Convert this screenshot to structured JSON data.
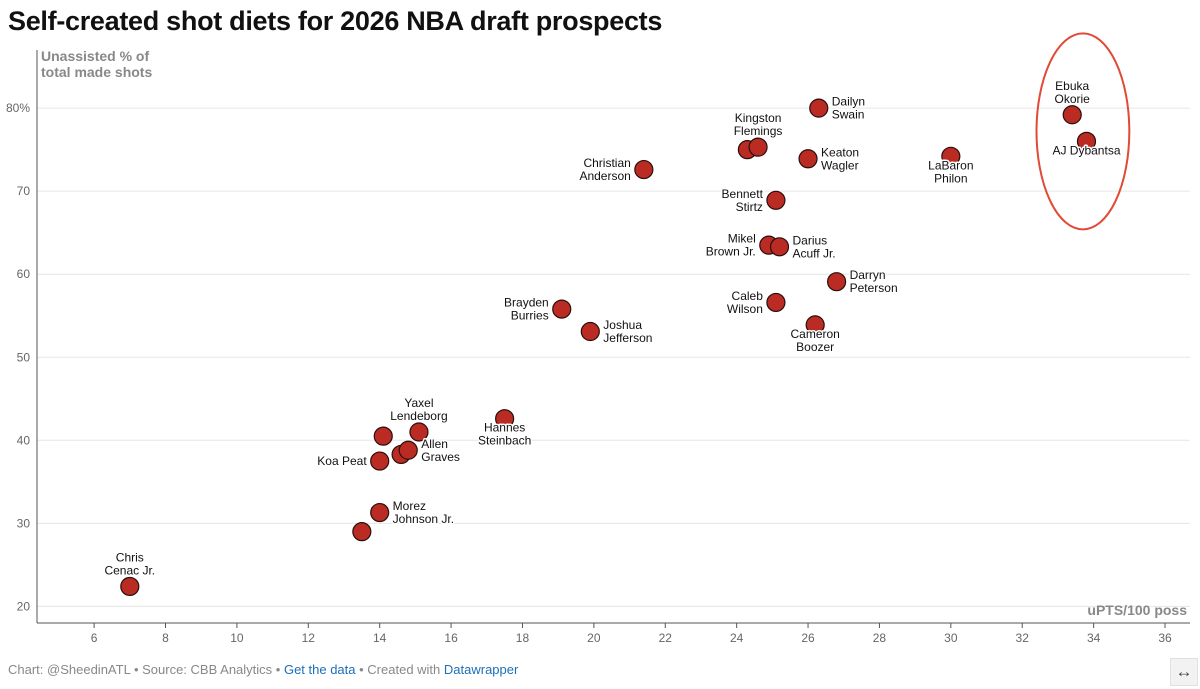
{
  "title": "Self-created shot diets for 2026 NBA draft prospects",
  "footer": {
    "chart_by": "Chart: @SheedinATL",
    "sep1": " • ",
    "source": "Source: CBB Analytics",
    "sep2": " • ",
    "get_data": "Get the data",
    "sep3": " • ",
    "created_with": "Created with ",
    "datawrapper": "Datawrapper"
  },
  "expand_icon": "↔",
  "colors": {
    "point_fill": "#b92b23",
    "point_stroke": "#2b0e0c",
    "highlight_ring": "#e04a36",
    "grid": "#e6e6e6",
    "axis": "#555555"
  },
  "chart_data": {
    "type": "scatter",
    "title": "Self-created shot diets for 2026 NBA draft prospects",
    "xlabel": "uPTS/100 poss",
    "ylabel_lines": [
      "Unassisted % of",
      "total made shots"
    ],
    "xlim": [
      4.4,
      36.7
    ],
    "ylim": [
      18,
      87
    ],
    "x_ticks": [
      6,
      8,
      10,
      12,
      14,
      16,
      18,
      20,
      22,
      24,
      26,
      28,
      30,
      32,
      34,
      36
    ],
    "y_ticks": [
      20,
      30,
      40,
      50,
      60,
      70,
      80
    ],
    "y_tick_labels": [
      "20",
      "30",
      "40",
      "50",
      "60",
      "70",
      "80%"
    ],
    "highlight_ellipse": {
      "cx": 33.7,
      "cy": 77.2,
      "rx": 1.3,
      "ry": 11.8
    },
    "points": [
      {
        "x": 7.0,
        "y": 22.4,
        "label": [
          "Chris",
          "Cenac Jr."
        ],
        "pos": "above"
      },
      {
        "x": 13.5,
        "y": 29.0,
        "label": [],
        "pos": "none"
      },
      {
        "x": 14.0,
        "y": 31.3,
        "label": [
          "Morez",
          "Johnson Jr."
        ],
        "pos": "right"
      },
      {
        "x": 14.0,
        "y": 37.5,
        "label": [
          "Koa Peat"
        ],
        "pos": "left"
      },
      {
        "x": 14.1,
        "y": 40.5,
        "label": [],
        "pos": "none"
      },
      {
        "x": 14.6,
        "y": 38.3,
        "label": [],
        "pos": "none"
      },
      {
        "x": 14.8,
        "y": 38.8,
        "label": [
          "Allen",
          "Graves"
        ],
        "pos": "right"
      },
      {
        "x": 15.1,
        "y": 41.0,
        "label": [
          "Yaxel",
          "Lendeborg"
        ],
        "pos": "above"
      },
      {
        "x": 17.5,
        "y": 42.6,
        "label": [
          "Hannes",
          "Steinbach"
        ],
        "pos": "below"
      },
      {
        "x": 19.1,
        "y": 55.8,
        "label": [
          "Brayden",
          "Burries"
        ],
        "pos": "left"
      },
      {
        "x": 19.9,
        "y": 53.1,
        "label": [
          "Joshua",
          "Jefferson"
        ],
        "pos": "right"
      },
      {
        "x": 21.4,
        "y": 72.6,
        "label": [
          "Christian",
          "Anderson"
        ],
        "pos": "left"
      },
      {
        "x": 24.3,
        "y": 75.0,
        "label": [],
        "pos": "none"
      },
      {
        "x": 24.6,
        "y": 75.3,
        "label": [
          "Kingston",
          "Flemings"
        ],
        "pos": "above"
      },
      {
        "x": 24.9,
        "y": 63.5,
        "label": [
          "Mikel",
          "Brown Jr."
        ],
        "pos": "left"
      },
      {
        "x": 25.1,
        "y": 56.6,
        "label": [
          "Caleb",
          "Wilson"
        ],
        "pos": "left"
      },
      {
        "x": 25.1,
        "y": 68.9,
        "label": [
          "Bennett",
          "Stirtz"
        ],
        "pos": "left"
      },
      {
        "x": 25.2,
        "y": 63.3,
        "label": [
          "Darius",
          "Acuff Jr."
        ],
        "pos": "right"
      },
      {
        "x": 26.0,
        "y": 73.9,
        "label": [
          "Keaton",
          "Wagler"
        ],
        "pos": "right"
      },
      {
        "x": 26.2,
        "y": 53.9,
        "label": [
          "Cameron",
          "Boozer"
        ],
        "pos": "below"
      },
      {
        "x": 26.3,
        "y": 80.0,
        "label": [
          "Dailyn",
          "Swain"
        ],
        "pos": "right"
      },
      {
        "x": 26.8,
        "y": 59.1,
        "label": [
          "Darryn",
          "Peterson"
        ],
        "pos": "right"
      },
      {
        "x": 30.0,
        "y": 74.2,
        "label": [
          "LaBaron",
          "Philon"
        ],
        "pos": "below"
      },
      {
        "x": 33.4,
        "y": 79.2,
        "label": [
          "Ebuka",
          "Okorie"
        ],
        "pos": "above"
      },
      {
        "x": 33.8,
        "y": 76.0,
        "label": [
          "AJ Dybantsa"
        ],
        "pos": "below"
      }
    ]
  }
}
